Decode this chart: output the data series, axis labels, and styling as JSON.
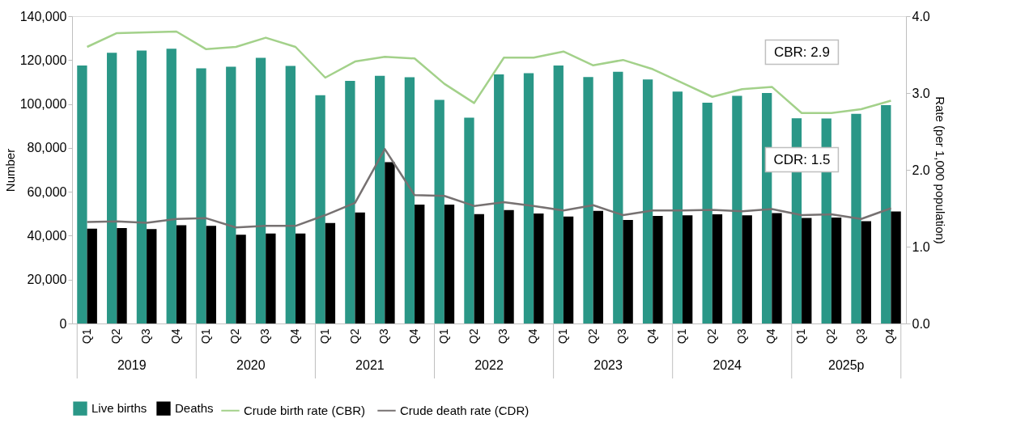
{
  "chart_data": {
    "type": "bar",
    "ylabel": "Number",
    "y2label": "Rate (per 1,000 population)",
    "categories": [
      "Q1",
      "Q2",
      "Q3",
      "Q4",
      "Q1",
      "Q2",
      "Q3",
      "Q4",
      "Q1",
      "Q2",
      "Q3",
      "Q4",
      "Q1",
      "Q2",
      "Q3",
      "Q4",
      "Q1",
      "Q2",
      "Q3",
      "Q4",
      "Q1",
      "Q2",
      "Q3",
      "Q4",
      "Q1",
      "Q2",
      "Q3",
      "Q4"
    ],
    "series": [
      {
        "name": "Live births",
        "color": "#2a9787",
        "values": [
          117500,
          123300,
          124300,
          125200,
          116200,
          117000,
          121000,
          117300,
          104000,
          110500,
          112800,
          112200,
          101900,
          93800,
          113500,
          114000,
          117500,
          112300,
          114700,
          111200,
          105600,
          100600,
          103700,
          105000,
          93500,
          93400,
          95500,
          99500
        ]
      },
      {
        "name": "Deaths",
        "color": "#000000",
        "values": [
          43200,
          43500,
          43000,
          44800,
          44500,
          40400,
          41000,
          41000,
          45800,
          50600,
          73500,
          54200,
          54200,
          49800,
          51700,
          50100,
          48700,
          51300,
          47200,
          49000,
          49300,
          49700,
          49300,
          50300,
          48100,
          48300,
          46600,
          51000
        ]
      },
      {
        "name": "Crude birth rate (CBR)",
        "color": "#a3d18a",
        "type": "line",
        "axis": "y2",
        "values": [
          3.6,
          3.78,
          3.79,
          3.8,
          3.57,
          3.6,
          3.72,
          3.6,
          3.2,
          3.41,
          3.47,
          3.45,
          3.12,
          2.87,
          3.46,
          3.46,
          3.54,
          3.36,
          3.43,
          3.31,
          3.13,
          2.95,
          3.05,
          3.08,
          2.74,
          2.74,
          2.79,
          2.9
        ]
      },
      {
        "name": "Crude death rate (CDR)",
        "color": "#767171",
        "type": "line",
        "axis": "y2",
        "values": [
          1.32,
          1.33,
          1.31,
          1.36,
          1.37,
          1.25,
          1.27,
          1.27,
          1.41,
          1.57,
          2.27,
          1.67,
          1.66,
          1.53,
          1.58,
          1.53,
          1.47,
          1.54,
          1.41,
          1.47,
          1.47,
          1.48,
          1.46,
          1.49,
          1.41,
          1.42,
          1.36,
          1.5
        ]
      }
    ],
    "ylim": [
      0,
      140000
    ],
    "yticks": [
      0,
      {
        "value": 20000,
        "label": "20,000"
      },
      {
        "value": 40000,
        "label": "40,000"
      },
      {
        "value": 60000,
        "label": "60,000"
      },
      {
        "value": 80000,
        "label": "80,000"
      },
      {
        "value": 100000,
        "label": "100,000"
      },
      {
        "value": 120000,
        "label": "120,000"
      },
      {
        "value": 140000,
        "label": "140,000"
      }
    ],
    "y2lim": [
      0.0,
      4.0
    ],
    "y2ticks": [
      {
        "value": 0,
        "label": "0.0"
      },
      {
        "value": 1,
        "label": "1.0"
      },
      {
        "value": 2,
        "label": "2.0"
      },
      {
        "value": 3,
        "label": "3.0"
      },
      {
        "value": 4,
        "label": "4.0"
      }
    ],
    "annotations": [
      "2019",
      "2020",
      "2021",
      "2022",
      "2023",
      "2024",
      "2025p",
      "CBR:  2.9",
      "CDR:  1.5"
    ],
    "legend": "bottom",
    "grid": false
  }
}
